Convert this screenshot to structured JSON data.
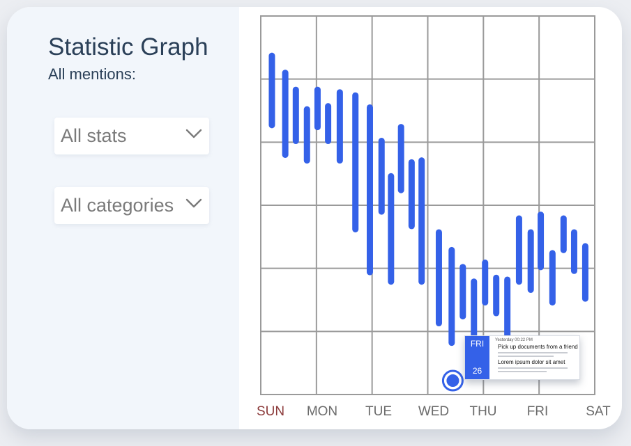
{
  "header": {
    "title": "Statistic Graph",
    "subtitle": "All mentions:"
  },
  "filters": {
    "stats_selected": "All stats",
    "categories_selected": "All categories",
    "chevron_icon": "chevron-down-icon"
  },
  "tooltip": {
    "day": "FRI",
    "date": "26",
    "time": "Yesterday 00:22   PM",
    "line1": "Pick up documents from a friend",
    "line2": "Lorem ipsum dolor sit amet"
  },
  "colors": {
    "accent": "#3461e8",
    "grid": "#9a9a9a",
    "sunday": "#8b3a3a",
    "axis_text": "#6a6a6a"
  },
  "chart_data": {
    "type": "bar",
    "subtype": "floating-range",
    "categories": [
      "SUN",
      "MON",
      "TUE",
      "WED",
      "THU",
      "FRI",
      "SAT"
    ],
    "highlight_category": "SUN",
    "grid": true,
    "rows": 6,
    "ylim": [
      0,
      6
    ],
    "bars": [
      {
        "x": 0.2,
        "low": 4.27,
        "high": 5.37
      },
      {
        "x": 0.44,
        "low": 3.8,
        "high": 5.1
      },
      {
        "x": 0.63,
        "low": 4.02,
        "high": 4.83
      },
      {
        "x": 0.83,
        "low": 3.71,
        "high": 4.52
      },
      {
        "x": 1.02,
        "low": 4.24,
        "high": 4.83
      },
      {
        "x": 1.21,
        "low": 4.02,
        "high": 4.57
      },
      {
        "x": 1.42,
        "low": 3.71,
        "high": 4.79
      },
      {
        "x": 1.7,
        "low": 2.62,
        "high": 4.74
      },
      {
        "x": 1.96,
        "low": 1.94,
        "high": 4.55
      },
      {
        "x": 2.17,
        "low": 2.9,
        "high": 4.02
      },
      {
        "x": 2.34,
        "low": 1.79,
        "high": 3.46
      },
      {
        "x": 2.52,
        "low": 3.24,
        "high": 4.24
      },
      {
        "x": 2.71,
        "low": 2.67,
        "high": 3.68
      },
      {
        "x": 2.89,
        "low": 1.79,
        "high": 3.71
      },
      {
        "x": 3.2,
        "low": 1.13,
        "high": 2.57
      },
      {
        "x": 3.43,
        "low": 0.82,
        "high": 2.29
      },
      {
        "x": 3.63,
        "low": 1.24,
        "high": 2.02
      },
      {
        "x": 3.83,
        "low": 0.74,
        "high": 1.79
      },
      {
        "x": 4.03,
        "low": 1.46,
        "high": 2.09
      },
      {
        "x": 4.23,
        "low": 1.29,
        "high": 1.85
      },
      {
        "x": 4.43,
        "low": 0.74,
        "high": 1.82
      },
      {
        "x": 4.64,
        "low": 1.79,
        "high": 2.79
      },
      {
        "x": 4.85,
        "low": 1.66,
        "high": 2.57
      },
      {
        "x": 5.03,
        "low": 2.02,
        "high": 2.85
      },
      {
        "x": 5.24,
        "low": 1.46,
        "high": 2.24
      },
      {
        "x": 5.44,
        "low": 2.29,
        "high": 2.79
      },
      {
        "x": 5.63,
        "low": 1.96,
        "high": 2.57
      },
      {
        "x": 5.83,
        "low": 1.52,
        "high": 2.35
      }
    ],
    "marker": {
      "x": 3.45,
      "y": 0.22
    }
  }
}
